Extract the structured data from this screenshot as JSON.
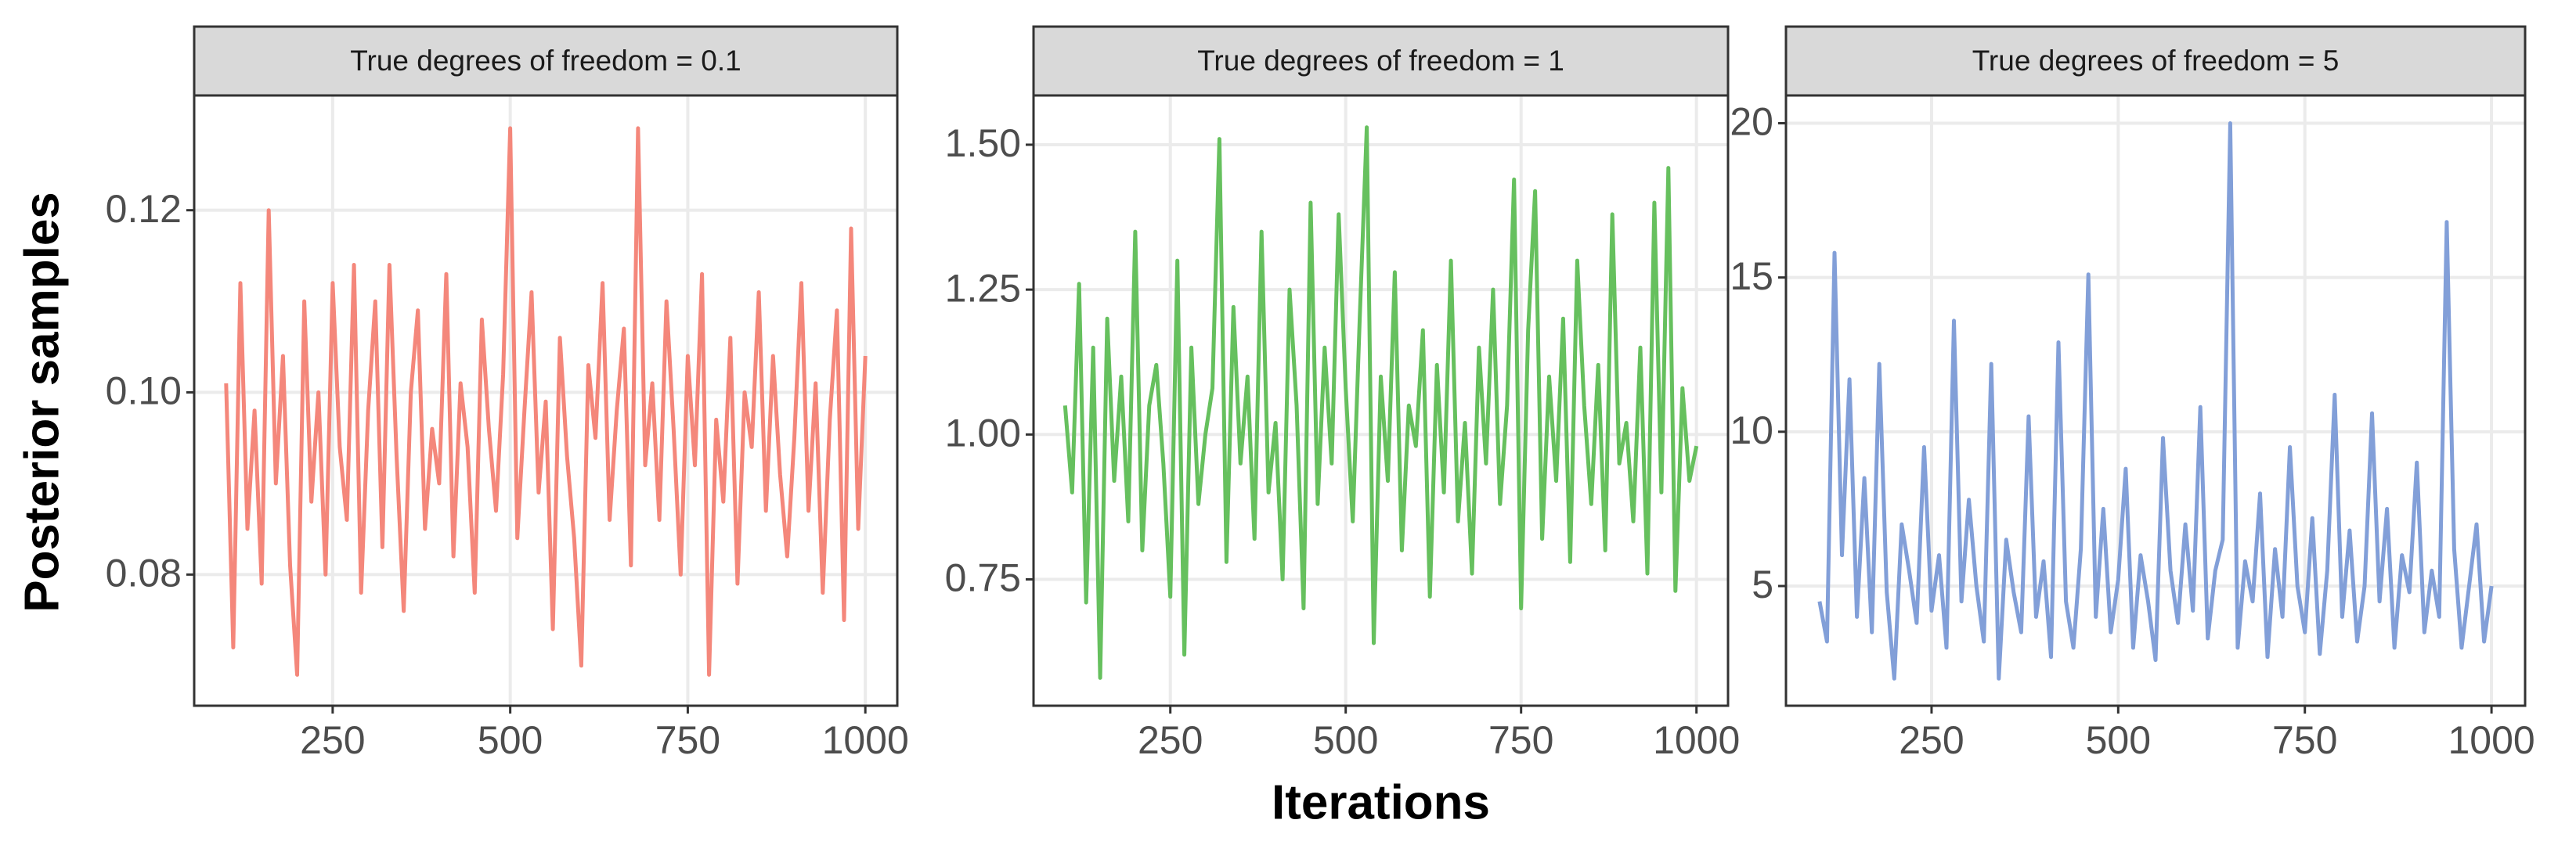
{
  "chart_data": [
    {
      "type": "line",
      "title": "True degrees of freedom = 0.1",
      "ylabel": "Posterior samples",
      "x": [
        100,
        110,
        120,
        130,
        140,
        150,
        160,
        170,
        180,
        190,
        200,
        210,
        220,
        230,
        240,
        250,
        260,
        270,
        280,
        290,
        300,
        310,
        320,
        330,
        340,
        350,
        360,
        370,
        380,
        390,
        400,
        410,
        420,
        430,
        440,
        450,
        460,
        470,
        480,
        490,
        500,
        510,
        520,
        530,
        540,
        550,
        560,
        570,
        580,
        590,
        600,
        610,
        620,
        630,
        640,
        650,
        660,
        670,
        680,
        690,
        700,
        710,
        720,
        730,
        740,
        750,
        760,
        770,
        780,
        790,
        800,
        810,
        820,
        830,
        840,
        850,
        860,
        870,
        880,
        890,
        900,
        910,
        920,
        930,
        940,
        950,
        960,
        970,
        980,
        990,
        1000
      ],
      "series": [
        {
          "color": "#f4877b",
          "values": [
            0.101,
            0.072,
            0.112,
            0.085,
            0.098,
            0.079,
            0.12,
            0.09,
            0.104,
            0.081,
            0.069,
            0.11,
            0.088,
            0.1,
            0.08,
            0.112,
            0.094,
            0.086,
            0.114,
            0.078,
            0.098,
            0.11,
            0.083,
            0.114,
            0.093,
            0.076,
            0.1,
            0.109,
            0.085,
            0.096,
            0.09,
            0.113,
            0.082,
            0.101,
            0.094,
            0.078,
            0.108,
            0.096,
            0.087,
            0.102,
            0.129,
            0.084,
            0.098,
            0.111,
            0.089,
            0.099,
            0.074,
            0.106,
            0.093,
            0.084,
            0.07,
            0.103,
            0.095,
            0.112,
            0.086,
            0.098,
            0.107,
            0.081,
            0.129,
            0.092,
            0.101,
            0.086,
            0.11,
            0.096,
            0.08,
            0.104,
            0.092,
            0.113,
            0.069,
            0.097,
            0.088,
            0.106,
            0.079,
            0.1,
            0.094,
            0.111,
            0.087,
            0.104,
            0.091,
            0.082,
            0.095,
            0.112,
            0.087,
            0.101,
            0.078,
            0.097,
            0.109,
            0.075,
            0.118,
            0.085,
            0.104
          ]
        }
      ],
      "xlim": [
        55,
        1045
      ],
      "xticks": [
        250,
        500,
        750,
        1000
      ],
      "ylim": [
        0.0656,
        0.1326
      ],
      "yticks": [
        {
          "value": 0.08,
          "label": "0.08"
        },
        {
          "value": 0.1,
          "label": "0.10"
        },
        {
          "value": 0.12,
          "label": "0.12"
        }
      ],
      "grid": true
    },
    {
      "type": "line",
      "title": "True degrees of freedom = 1",
      "xlabel": "Iterations",
      "x": [
        100,
        110,
        120,
        130,
        140,
        150,
        160,
        170,
        180,
        190,
        200,
        210,
        220,
        230,
        240,
        250,
        260,
        270,
        280,
        290,
        300,
        310,
        320,
        330,
        340,
        350,
        360,
        370,
        380,
        390,
        400,
        410,
        420,
        430,
        440,
        450,
        460,
        470,
        480,
        490,
        500,
        510,
        520,
        530,
        540,
        550,
        560,
        570,
        580,
        590,
        600,
        610,
        620,
        630,
        640,
        650,
        660,
        670,
        680,
        690,
        700,
        710,
        720,
        730,
        740,
        750,
        760,
        770,
        780,
        790,
        800,
        810,
        820,
        830,
        840,
        850,
        860,
        870,
        880,
        890,
        900,
        910,
        920,
        930,
        940,
        950,
        960,
        970,
        980,
        990,
        1000
      ],
      "series": [
        {
          "color": "#66c05e",
          "values": [
            1.05,
            0.9,
            1.26,
            0.71,
            1.15,
            0.58,
            1.2,
            0.92,
            1.1,
            0.85,
            1.35,
            0.8,
            1.05,
            1.12,
            0.95,
            0.72,
            1.3,
            0.62,
            1.15,
            0.88,
            1.0,
            1.08,
            1.51,
            0.78,
            1.22,
            0.95,
            1.1,
            0.82,
            1.35,
            0.9,
            1.02,
            0.75,
            1.25,
            1.05,
            0.7,
            1.4,
            0.88,
            1.15,
            0.95,
            1.38,
            1.08,
            0.85,
            1.2,
            1.53,
            0.64,
            1.1,
            0.92,
            1.28,
            0.8,
            1.05,
            0.98,
            1.18,
            0.72,
            1.12,
            0.9,
            1.3,
            0.85,
            1.02,
            0.76,
            1.15,
            0.95,
            1.25,
            0.88,
            1.05,
            1.44,
            0.7,
            1.18,
            1.42,
            0.82,
            1.1,
            0.92,
            1.2,
            0.78,
            1.3,
            1.05,
            0.88,
            1.12,
            0.8,
            1.38,
            0.95,
            1.02,
            0.85,
            1.15,
            0.76,
            1.4,
            0.9,
            1.46,
            0.73,
            1.08,
            0.92,
            0.98
          ]
        }
      ],
      "xlim": [
        55,
        1045
      ],
      "xticks": [
        250,
        500,
        750,
        1000
      ],
      "ylim": [
        0.532,
        1.585
      ],
      "yticks": [
        {
          "value": 0.75,
          "label": "0.75"
        },
        {
          "value": 1,
          "label": "1.00"
        },
        {
          "value": 1.25,
          "label": "1.25"
        },
        {
          "value": 1.5,
          "label": "1.50"
        }
      ],
      "grid": true
    },
    {
      "type": "line",
      "title": "True degrees of freedom = 5",
      "x": [
        100,
        110,
        120,
        130,
        140,
        150,
        160,
        170,
        180,
        190,
        200,
        210,
        220,
        230,
        240,
        250,
        260,
        270,
        280,
        290,
        300,
        310,
        320,
        330,
        340,
        350,
        360,
        370,
        380,
        390,
        400,
        410,
        420,
        430,
        440,
        450,
        460,
        470,
        480,
        490,
        500,
        510,
        520,
        530,
        540,
        550,
        560,
        570,
        580,
        590,
        600,
        610,
        620,
        630,
        640,
        650,
        660,
        670,
        680,
        690,
        700,
        710,
        720,
        730,
        740,
        750,
        760,
        770,
        780,
        790,
        800,
        810,
        820,
        830,
        840,
        850,
        860,
        870,
        880,
        890,
        900,
        910,
        920,
        930,
        940,
        950,
        960,
        970,
        980,
        990,
        1000
      ],
      "series": [
        {
          "color": "#829fd8",
          "values": [
            4.5,
            3.2,
            15.8,
            6.0,
            11.7,
            4.0,
            8.5,
            3.5,
            12.2,
            4.8,
            2.0,
            7.0,
            5.5,
            3.8,
            9.5,
            4.2,
            6.0,
            3.0,
            13.6,
            4.5,
            7.8,
            5.0,
            3.2,
            12.2,
            2.0,
            6.5,
            4.8,
            3.5,
            10.5,
            4.0,
            5.8,
            2.7,
            12.9,
            4.5,
            3.0,
            6.2,
            15.1,
            4.0,
            7.5,
            3.5,
            5.2,
            8.8,
            3.0,
            6.0,
            4.5,
            2.6,
            9.8,
            5.5,
            3.8,
            7.0,
            4.2,
            10.8,
            3.3,
            5.5,
            6.5,
            20.0,
            3.0,
            5.8,
            4.5,
            8.0,
            2.7,
            6.2,
            4.0,
            9.5,
            5.0,
            3.5,
            7.2,
            2.8,
            5.5,
            11.2,
            4.0,
            6.8,
            3.2,
            5.0,
            10.6,
            4.5,
            7.5,
            3.0,
            6.0,
            4.8,
            9.0,
            3.5,
            5.5,
            4.0,
            16.8,
            6.2,
            3.0,
            5.0,
            7.0,
            3.2,
            5.0
          ]
        }
      ],
      "xlim": [
        55,
        1045
      ],
      "xticks": [
        250,
        500,
        750,
        1000
      ],
      "ylim": [
        1.12,
        20.9
      ],
      "yticks": [
        5,
        10,
        15,
        20
      ],
      "grid": true
    }
  ]
}
